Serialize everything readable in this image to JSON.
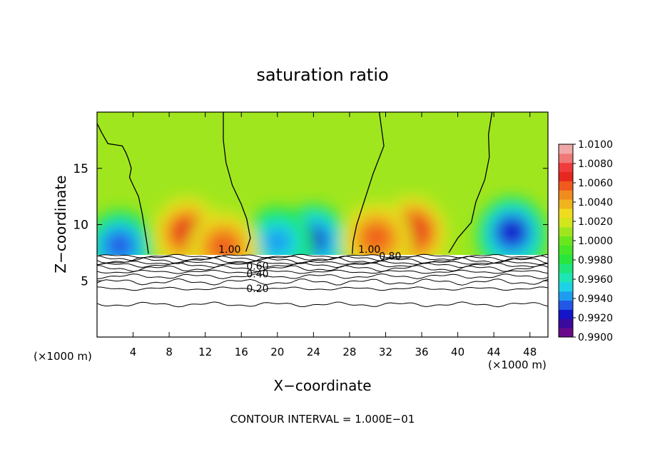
{
  "chart_data": {
    "type": "heatmap",
    "title": "saturation ratio",
    "xlabel": "X−coordinate",
    "ylabel": "Z−coordinate",
    "x_unit_left": "(×1000 m)",
    "x_unit_right": "(×1000 m)",
    "footer": "CONTOUR INTERVAL = 1.000E−01",
    "xlim": [
      0,
      50
    ],
    "ylim": [
      0,
      20
    ],
    "x_ticks": [
      4,
      8,
      12,
      16,
      20,
      24,
      28,
      32,
      36,
      40,
      44,
      48
    ],
    "y_ticks": [
      5,
      10,
      15
    ],
    "colorbar": {
      "labels": [
        "1.0100",
        "1.0080",
        "1.0060",
        "1.0040",
        "1.0020",
        "1.0000",
        "0.9980",
        "0.9960",
        "0.9940",
        "0.9920",
        "0.9900"
      ],
      "min": 0.99,
      "max": 1.01,
      "bands": [
        "#6a0a8a",
        "#3a0a9e",
        "#1414c8",
        "#2258e6",
        "#1e9cf0",
        "#1ed2e6",
        "#1ee6b4",
        "#1ee67a",
        "#28e63c",
        "#46e628",
        "#6ae61e",
        "#a0e61e",
        "#d2e61e",
        "#f0dc1e",
        "#f0b41e",
        "#f08c1e",
        "#f05a1e",
        "#e6281e",
        "#f03c3c",
        "#f07878",
        "#f0a8a8"
      ]
    },
    "contours": [
      {
        "label": "1.00",
        "x": 14.7,
        "z": 7.5
      },
      {
        "label": "1.00",
        "x": 30.2,
        "z": 7.5
      },
      {
        "label": "0.80",
        "x": 32.5,
        "z": 6.9
      },
      {
        "label": "0.60",
        "x": 17.8,
        "z": 6.0
      },
      {
        "label": "0.40",
        "x": 17.8,
        "z": 5.3
      },
      {
        "label": "0.20",
        "x": 17.8,
        "z": 4.0
      }
    ],
    "cloud_base_z": 7.3,
    "highs": [
      {
        "x": 10.0,
        "z": 9.5,
        "value": 1.0075
      },
      {
        "x": 14.0,
        "z": 8.2,
        "value": 1.007
      },
      {
        "x": 35.0,
        "z": 9.6,
        "value": 1.0078
      },
      {
        "x": 31.0,
        "z": 9.0,
        "value": 1.0065
      }
    ],
    "lows": [
      {
        "x": 2.5,
        "z": 8.3,
        "value": 0.992
      },
      {
        "x": 24.0,
        "z": 8.8,
        "value": 0.9915
      },
      {
        "x": 20.0,
        "z": 8.6,
        "value": 0.9935
      },
      {
        "x": 46.0,
        "z": 9.5,
        "value": 0.991
      }
    ]
  }
}
